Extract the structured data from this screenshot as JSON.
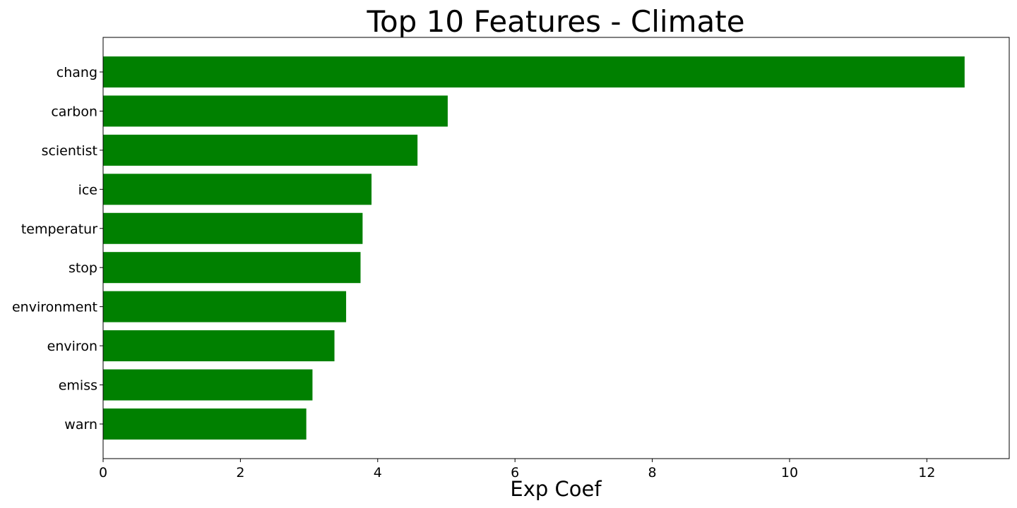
{
  "chart_data": {
    "type": "bar",
    "orientation": "horizontal",
    "title": "Top 10 Features - Climate",
    "xlabel": "Exp Coef",
    "ylabel": "",
    "categories": [
      "chang",
      "carbon",
      "scientist",
      "ice",
      "temperatur",
      "stop",
      "environment",
      "environ",
      "emiss",
      "warn"
    ],
    "values": [
      12.55,
      5.02,
      4.58,
      3.91,
      3.78,
      3.75,
      3.54,
      3.37,
      3.05,
      2.96
    ],
    "xlim": [
      0,
      13.2
    ],
    "xticks": [
      "0",
      "2",
      "4",
      "6",
      "8",
      "10",
      "12"
    ],
    "bar_color": "#008000",
    "grid": false,
    "legend": false
  }
}
